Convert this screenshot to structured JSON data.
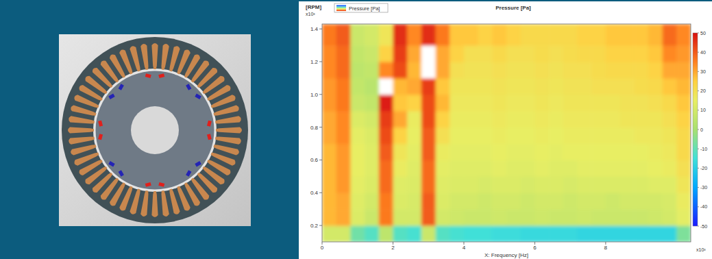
{
  "chart_data": {
    "type": "heatmap",
    "title": "Pressure [Pa]",
    "legend_label": "Pressure [Pa]",
    "legend": "top-left",
    "x_label": "X: Frequency [Hz]",
    "x_multiplier": "x10³",
    "y_label": "[RPM]",
    "y_multiplier": "x10³",
    "xlim": [
      0,
      10.4
    ],
    "xticks": [
      0,
      2,
      4,
      6,
      8
    ],
    "ylim": [
      0.1,
      1.43
    ],
    "yticks": [
      0.2,
      0.4,
      0.6,
      0.8,
      {
        "value": 1,
        "label": "1.0"
      },
      1.2,
      1.4
    ],
    "x_edges": [
      0,
      0.4,
      0.8,
      1.2,
      1.6,
      2,
      2.4,
      2.8,
      3.2,
      3.6,
      4,
      4.4,
      4.8,
      5.2,
      5.6,
      6,
      6.4,
      6.8,
      7.2,
      7.6,
      8,
      8.4,
      8.8,
      9.2,
      9.6,
      10,
      10.4
    ],
    "y_edges": [
      0.1,
      0.2,
      0.3,
      0.4,
      0.5,
      0.6,
      0.7,
      0.8,
      0.9,
      1,
      1.1,
      1.2,
      1.3,
      1.43
    ],
    "cells": [
      [
        10,
        10,
        -8,
        -12,
        5,
        -12,
        -14,
        8,
        -12,
        -14,
        -15,
        -15,
        -16,
        -16,
        -17,
        -17,
        -17,
        -17,
        -18,
        -18,
        -18,
        -18,
        -18,
        -18,
        -18,
        -6
      ],
      [
        28,
        30,
        12,
        8,
        36,
        10,
        10,
        40,
        10,
        9,
        8,
        8,
        9,
        8,
        8,
        9,
        8,
        8,
        9,
        8,
        8,
        8,
        8,
        9,
        10,
        14
      ],
      [
        28,
        30,
        13,
        10,
        36,
        12,
        11,
        40,
        12,
        10,
        10,
        9,
        10,
        10,
        9,
        10,
        10,
        9,
        10,
        10,
        9,
        10,
        10,
        10,
        11,
        16
      ],
      [
        28,
        32,
        14,
        12,
        38,
        13,
        12,
        38,
        13,
        12,
        12,
        11,
        12,
        12,
        11,
        12,
        12,
        11,
        12,
        12,
        12,
        12,
        12,
        13,
        13,
        18
      ],
      [
        28,
        32,
        15,
        13,
        38,
        16,
        13,
        38,
        14,
        13,
        13,
        13,
        14,
        13,
        13,
        14,
        13,
        13,
        14,
        14,
        14,
        14,
        14,
        15,
        16,
        20
      ],
      [
        28,
        32,
        15,
        13,
        40,
        18,
        14,
        40,
        16,
        14,
        14,
        14,
        15,
        14,
        14,
        15,
        14,
        15,
        15,
        15,
        15,
        15,
        15,
        16,
        17,
        22
      ],
      [
        30,
        34,
        14,
        12,
        42,
        24,
        15,
        40,
        20,
        15,
        15,
        15,
        16,
        15,
        15,
        16,
        15,
        16,
        16,
        16,
        16,
        16,
        17,
        17,
        18,
        22
      ],
      [
        30,
        34,
        12,
        10,
        44,
        30,
        16,
        42,
        24,
        16,
        16,
        16,
        17,
        16,
        16,
        17,
        16,
        17,
        17,
        17,
        17,
        18,
        18,
        18,
        20,
        24
      ],
      [
        32,
        36,
        8,
        6,
        48,
        26,
        24,
        42,
        28,
        17,
        17,
        17,
        18,
        17,
        17,
        18,
        17,
        18,
        18,
        18,
        18,
        19,
        19,
        20,
        22,
        26
      ],
      [
        32,
        36,
        6,
        4,
        56,
        28,
        30,
        44,
        26,
        18,
        18,
        18,
        19,
        18,
        18,
        19,
        18,
        19,
        19,
        20,
        20,
        20,
        21,
        22,
        26,
        28
      ],
      [
        34,
        38,
        5,
        6,
        34,
        42,
        28,
        56,
        30,
        20,
        19,
        19,
        20,
        19,
        19,
        20,
        19,
        20,
        20,
        21,
        22,
        22,
        22,
        24,
        30,
        30
      ],
      [
        34,
        38,
        6,
        8,
        24,
        44,
        30,
        54,
        30,
        24,
        20,
        20,
        22,
        20,
        20,
        21,
        20,
        21,
        22,
        22,
        24,
        24,
        24,
        26,
        34,
        32
      ],
      [
        36,
        40,
        8,
        10,
        18,
        46,
        34,
        46,
        36,
        26,
        26,
        24,
        26,
        24,
        22,
        22,
        22,
        22,
        24,
        24,
        26,
        26,
        26,
        28,
        38,
        34
      ]
    ],
    "zlim": [
      -50,
      50
    ],
    "zticks": [
      50,
      40,
      30,
      20,
      10,
      0,
      -10,
      -20,
      -30,
      -40,
      -50
    ]
  }
}
